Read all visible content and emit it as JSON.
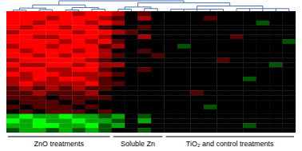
{
  "chart_data": {
    "type": "heatmap",
    "tick_labels": false,
    "color_range": [
      -3,
      3
    ],
    "groups": [
      {
        "label": "ZnO treatments",
        "start": 0,
        "end": 7
      },
      {
        "label": "Soluble Zn",
        "start": 8,
        "end": 11
      },
      {
        "label": "TiO₂ and control treatments",
        "start": 12,
        "end": 21
      }
    ],
    "dendrogram": {
      "height": 1.0,
      "children": [
        {
          "height": 0.6,
          "children": [
            {
              "height": 0.3,
              "children": [
                {
                  "height": 0.1,
                  "children": [
                    0,
                    1
                  ]
                },
                {
                  "height": 0.15,
                  "children": [
                    2,
                    3
                  ]
                }
              ]
            },
            {
              "height": 0.35,
              "children": [
                {
                  "height": 0.12,
                  "children": [
                    4,
                    5
                  ]
                },
                {
                  "height": 0.2,
                  "children": [
                    6,
                    7
                  ]
                }
              ]
            }
          ]
        },
        {
          "height": 0.8,
          "children": [
            {
              "height": 0.4,
              "children": [
                {
                  "height": 0.2,
                  "children": [
                    8,
                    9
                  ]
                },
                {
                  "height": 0.25,
                  "children": [
                    10,
                    11
                  ]
                }
              ]
            },
            {
              "height": 0.5,
              "children": [
                {
                  "height": 0.2,
                  "children": [
                    12,
                    13,
                    14,
                    15,
                    16
                  ]
                },
                {
                  "height": 0.25,
                  "children": [
                    17,
                    18,
                    19,
                    20,
                    21
                  ]
                }
              ]
            }
          ]
        }
      ]
    },
    "cells": [
      [
        3,
        3,
        3,
        3,
        3,
        2,
        3,
        3,
        2,
        0,
        1,
        0,
        0,
        0,
        0,
        0,
        0,
        0,
        0,
        0,
        0,
        0
      ],
      [
        3,
        3,
        3,
        2,
        3,
        3,
        3,
        2,
        1,
        0,
        2,
        0,
        0,
        0,
        0,
        1,
        0,
        0,
        0,
        0,
        0,
        0
      ],
      [
        3,
        3,
        2,
        3,
        3,
        3,
        2,
        3,
        2,
        0,
        0,
        0,
        0,
        0,
        0,
        0,
        0,
        0,
        0,
        -1,
        0,
        0
      ],
      [
        3,
        2,
        3,
        3,
        2,
        3,
        3,
        1,
        0,
        0,
        1,
        0,
        0,
        0,
        0,
        0,
        0,
        0,
        0,
        0,
        0,
        0
      ],
      [
        2,
        3,
        3,
        3,
        3,
        2,
        3,
        3,
        2,
        1,
        0,
        0,
        0,
        0,
        0,
        0,
        0,
        0,
        0,
        0,
        0,
        0
      ],
      [
        3,
        3,
        2,
        2,
        3,
        3,
        3,
        2,
        0,
        0,
        2,
        0,
        0,
        0,
        0,
        0,
        0,
        1,
        0,
        0,
        0,
        0
      ],
      [
        3,
        3,
        3,
        3,
        2,
        3,
        2,
        3,
        1,
        0,
        0,
        0,
        0,
        0,
        0,
        0,
        0,
        0,
        0,
        0,
        0,
        -1
      ],
      [
        2,
        3,
        3,
        2,
        3,
        3,
        3,
        1,
        2,
        0,
        0,
        0,
        0,
        -1,
        0,
        0,
        0,
        0,
        0,
        0,
        0,
        0
      ],
      [
        3,
        2,
        3,
        3,
        3,
        2,
        3,
        2,
        0,
        0,
        1,
        0,
        0,
        0,
        0,
        0,
        0,
        0,
        0,
        0,
        0,
        0
      ],
      [
        3,
        3,
        2,
        3,
        2,
        3,
        3,
        2,
        1,
        0,
        0,
        1,
        0,
        0,
        0,
        0,
        0,
        0,
        0,
        0,
        0,
        0
      ],
      [
        2,
        3,
        3,
        3,
        3,
        3,
        2,
        1,
        0,
        0,
        0,
        0,
        0,
        0,
        0,
        0,
        1,
        0,
        0,
        0,
        0,
        0
      ],
      [
        3,
        2,
        2,
        3,
        3,
        2,
        3,
        2,
        2,
        0,
        0,
        0,
        0,
        0,
        0,
        0,
        0,
        0,
        0,
        0,
        -1,
        0
      ],
      [
        2,
        3,
        3,
        2,
        2,
        3,
        3,
        1,
        0,
        0,
        1,
        0,
        0,
        0,
        0,
        0,
        0,
        0,
        0,
        0,
        0,
        0
      ],
      [
        3,
        2,
        3,
        3,
        2,
        2,
        2,
        2,
        1,
        0,
        0,
        0,
        0,
        0,
        0,
        0,
        0,
        0,
        0,
        0,
        0,
        0
      ],
      [
        2,
        2,
        3,
        2,
        3,
        3,
        2,
        1,
        0,
        0,
        0,
        0,
        0,
        0,
        0,
        0,
        0,
        0,
        -1,
        0,
        0,
        0
      ],
      [
        2,
        3,
        2,
        2,
        2,
        2,
        3,
        1,
        1,
        0,
        0,
        0,
        0,
        0,
        0,
        0,
        0,
        0,
        0,
        0,
        0,
        0
      ],
      [
        1,
        2,
        1,
        2,
        1,
        2,
        1,
        1,
        0,
        0,
        0,
        0,
        0,
        0,
        0,
        0,
        0,
        0,
        0,
        0,
        0,
        0
      ],
      [
        1,
        1,
        2,
        1,
        1,
        1,
        2,
        0,
        0,
        0,
        0,
        0,
        0,
        0,
        1,
        0,
        0,
        0,
        0,
        0,
        0,
        0
      ],
      [
        1,
        1,
        1,
        0,
        1,
        1,
        1,
        1,
        0,
        0,
        0,
        0,
        0,
        0,
        0,
        0,
        0,
        0,
        0,
        0,
        0,
        0
      ],
      [
        0,
        1,
        1,
        1,
        0,
        1,
        0,
        0,
        0,
        0,
        0,
        0,
        0,
        0,
        0,
        0,
        0,
        0,
        0,
        0,
        0,
        0
      ],
      [
        1,
        0,
        1,
        1,
        1,
        0,
        1,
        0,
        0,
        0,
        0,
        0,
        0,
        0,
        0,
        -1,
        0,
        0,
        0,
        0,
        0,
        0
      ],
      [
        0,
        1,
        0,
        1,
        1,
        1,
        0,
        1,
        0,
        0,
        0,
        0,
        0,
        0,
        0,
        0,
        0,
        0,
        0,
        0,
        0,
        0
      ],
      [
        -2,
        -3,
        -2,
        -2,
        -3,
        -2,
        -2,
        -1,
        -2,
        0,
        -1,
        0,
        0,
        0,
        0,
        0,
        0,
        0,
        0,
        0,
        0,
        0
      ],
      [
        -3,
        -2,
        -3,
        -2,
        -2,
        -3,
        -2,
        -2,
        -1,
        0,
        -2,
        0,
        0,
        0,
        0,
        0,
        0,
        0,
        0,
        0,
        0,
        0
      ],
      [
        -2,
        -2,
        -3,
        -3,
        -2,
        -2,
        -3,
        -1,
        -2,
        0,
        0,
        0,
        0,
        0,
        0,
        0,
        0,
        0,
        -1,
        0,
        0,
        0
      ],
      [
        -1,
        -2,
        -2,
        -1,
        -2,
        -1,
        -2,
        -1,
        0,
        0,
        -1,
        0,
        0,
        0,
        0,
        0,
        0,
        0,
        0,
        0,
        0,
        0
      ]
    ]
  }
}
